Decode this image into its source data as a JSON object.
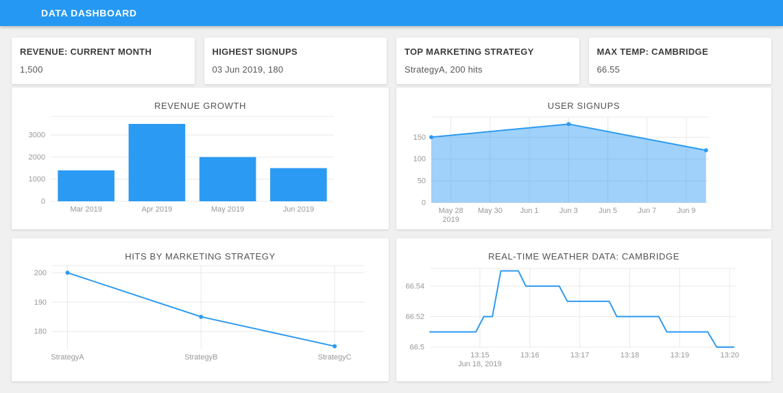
{
  "header": {
    "title": "DATA DASHBOARD"
  },
  "colors": {
    "header_bg": "#2498f3",
    "accent": "#2b9af3",
    "area_fill": "rgba(43,154,243,0.45)",
    "grid": "#e8e8e8",
    "tick_text": "#979797"
  },
  "stat_cards": [
    {
      "title": "REVENUE: CURRENT MONTH",
      "value": "1,500"
    },
    {
      "title": "HIGHEST SIGNUPS",
      "value": "03 Jun 2019, 180"
    },
    {
      "title": "TOP MARKETING STRATEGY",
      "value": "StrategyA, 200 hits"
    },
    {
      "title": "MAX TEMP: CAMBRIDGE",
      "value": "66.55"
    }
  ],
  "chart_data": [
    {
      "type": "bar",
      "title": "REVENUE GROWTH",
      "categories": [
        "Mar 2019",
        "Apr 2019",
        "May 2019",
        "Jun 2019"
      ],
      "values": [
        1400,
        3500,
        2000,
        1500
      ],
      "yticks": [
        0,
        1000,
        2000,
        3000
      ],
      "ylim": [
        0,
        3840
      ],
      "grid": "horizontal",
      "legend": "none"
    },
    {
      "type": "area",
      "title": "USER SIGNUPS",
      "x": [
        0,
        7,
        14
      ],
      "y": [
        150,
        180,
        120
      ],
      "point_dates": [
        "May 27 2019",
        "Jun 3 2019",
        "Jun 10 2019"
      ],
      "xlim": [
        0,
        14.15
      ],
      "ylim": [
        0,
        196
      ],
      "yticks": [
        0,
        50,
        100,
        150
      ],
      "xticks": [
        {
          "v": 1,
          "label": "May 28",
          "sub": "2019"
        },
        {
          "v": 3,
          "label": "May 30"
        },
        {
          "v": 5,
          "label": "Jun 1"
        },
        {
          "v": 7,
          "label": "Jun 3"
        },
        {
          "v": 9,
          "label": "Jun 5"
        },
        {
          "v": 11,
          "label": "Jun 7"
        },
        {
          "v": 13,
          "label": "Jun 9"
        }
      ],
      "markers": true,
      "grid": "both",
      "legend": "none"
    },
    {
      "type": "line",
      "title": "HITS BY MARKETING STRATEGY",
      "x": [
        0,
        1,
        2
      ],
      "y": [
        200,
        185,
        175
      ],
      "categories": [
        "StrategyA",
        "StrategyB",
        "StrategyC"
      ],
      "xlim": [
        -0.115,
        2.22
      ],
      "ylim": [
        174,
        202.4
      ],
      "yticks": [
        180,
        190,
        200
      ],
      "xticks": [
        {
          "v": 0,
          "label": "StrategyA"
        },
        {
          "v": 1,
          "label": "StrategyB"
        },
        {
          "v": 2,
          "label": "StrategyC"
        }
      ],
      "markers": true,
      "grid": "both",
      "legend": "none"
    },
    {
      "type": "line",
      "title": "REAL-TIME WEATHER DATA: CAMBRIDGE",
      "x": [
        0,
        0.92,
        1.08,
        1.25,
        1.42,
        1.77,
        1.92,
        2.59,
        2.75,
        3.59,
        3.74,
        4.58,
        4.74,
        5.56,
        5.74,
        6.08
      ],
      "y": [
        66.51,
        66.51,
        66.52,
        66.52,
        66.55,
        66.55,
        66.54,
        66.54,
        66.53,
        66.53,
        66.52,
        66.52,
        66.51,
        66.51,
        66.5,
        66.5
      ],
      "x_unit": "minutes after 13:14, Jun 18 2019",
      "xlim": [
        0,
        6.12
      ],
      "ylim": [
        66.5,
        66.5516
      ],
      "yticks": [
        66.5,
        66.52,
        66.54
      ],
      "xticks": [
        {
          "v": 1,
          "label": "13:15",
          "sub": "Jun 18, 2019"
        },
        {
          "v": 2,
          "label": "13:16"
        },
        {
          "v": 3,
          "label": "13:17"
        },
        {
          "v": 4,
          "label": "13:18"
        },
        {
          "v": 5,
          "label": "13:19"
        },
        {
          "v": 6,
          "label": "13:20"
        }
      ],
      "markers": false,
      "grid": "both",
      "legend": "none"
    }
  ]
}
